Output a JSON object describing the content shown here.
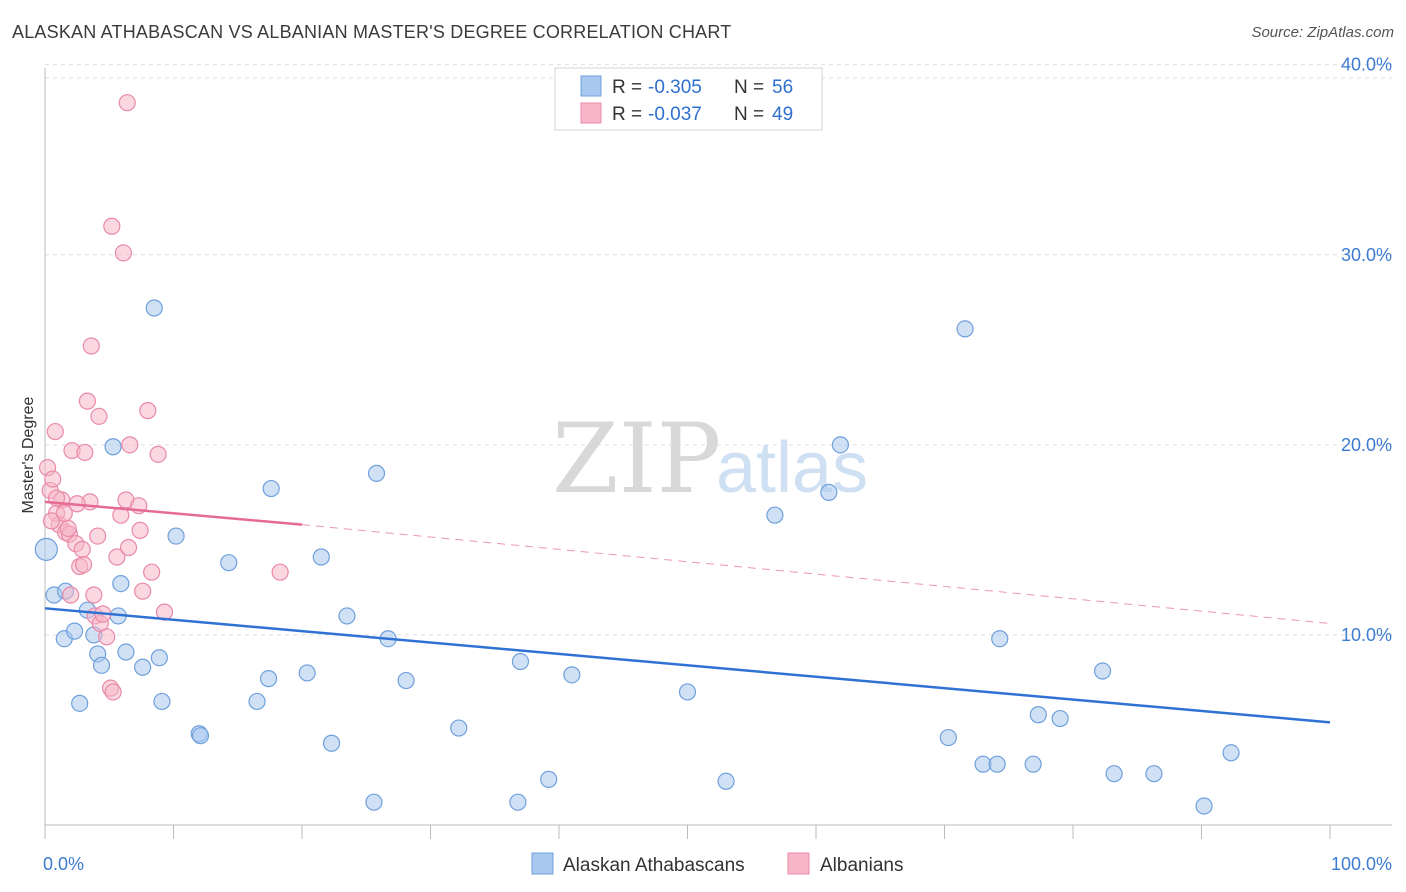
{
  "header": {
    "title": "ALASKAN ATHABASCAN VS ALBANIAN MASTER'S DEGREE CORRELATION CHART",
    "source": "Source: ZipAtlas.com"
  },
  "watermark": {
    "zip": "ZIP",
    "atlas": "atlas"
  },
  "legend": {
    "r_label": "R =",
    "n_label": "N =",
    "rows": [
      {
        "r": "-0.305",
        "n": "56",
        "color": "#a9c8ef"
      },
      {
        "r": "-0.037",
        "n": "49",
        "color": "#f6b6c8"
      }
    ]
  },
  "bottom_legend": [
    "Alaskan Athabascans",
    "Albanians"
  ],
  "chart_data": {
    "type": "scatter",
    "title": "ALASKAN ATHABASCAN VS ALBANIAN MASTER'S DEGREE CORRELATION CHART",
    "xlabel": "",
    "ylabel": "Master's Degree",
    "xlim": [
      0,
      100
    ],
    "ylim": [
      0,
      42
    ],
    "x_tick_labels": [
      "0.0%",
      "100.0%"
    ],
    "y_ticks": [
      10,
      20,
      30,
      40
    ],
    "y_tick_labels": [
      "10.0%",
      "20.0%",
      "30.0%",
      "40.0%"
    ],
    "grid": true,
    "series": [
      {
        "name": "Alaskan Athabascans",
        "color": "#a9c8ef",
        "stroke": "#6fa0dc",
        "line_color": "#2f72d4",
        "trend": {
          "x": [
            0,
            100
          ],
          "y": [
            11.4,
            5.4
          ]
        },
        "points": [
          [
            0.1,
            14.5
          ],
          [
            0.7,
            12.1
          ],
          [
            1.5,
            9.8
          ],
          [
            1.6,
            12.3
          ],
          [
            2.3,
            10.2
          ],
          [
            2.7,
            6.4
          ],
          [
            3.3,
            11.3
          ],
          [
            3.8,
            10.0
          ],
          [
            4.1,
            9.0
          ],
          [
            4.4,
            8.4
          ],
          [
            5.3,
            19.9
          ],
          [
            5.7,
            11.0
          ],
          [
            5.9,
            12.7
          ],
          [
            6.3,
            9.1
          ],
          [
            7.6,
            8.3
          ],
          [
            8.5,
            27.2
          ],
          [
            8.9,
            8.8
          ],
          [
            9.1,
            6.5
          ],
          [
            10.2,
            15.2
          ],
          [
            12.0,
            4.8
          ],
          [
            12.1,
            4.7
          ],
          [
            14.3,
            13.8
          ],
          [
            16.5,
            6.5
          ],
          [
            17.4,
            7.7
          ],
          [
            17.6,
            17.7
          ],
          [
            20.4,
            8.0
          ],
          [
            21.5,
            14.1
          ],
          [
            22.3,
            4.3
          ],
          [
            23.5,
            11.0
          ],
          [
            25.6,
            1.2
          ],
          [
            25.8,
            18.5
          ],
          [
            26.7,
            9.8
          ],
          [
            28.1,
            7.6
          ],
          [
            32.2,
            5.1
          ],
          [
            36.8,
            1.2
          ],
          [
            37.0,
            8.6
          ],
          [
            39.2,
            2.4
          ],
          [
            41.0,
            7.9
          ],
          [
            50.0,
            7.0
          ],
          [
            53.0,
            2.3
          ],
          [
            56.8,
            16.3
          ],
          [
            61.0,
            17.5
          ],
          [
            61.9,
            20.0
          ],
          [
            70.3,
            4.6
          ],
          [
            71.6,
            26.1
          ],
          [
            73.0,
            3.2
          ],
          [
            74.1,
            3.2
          ],
          [
            74.3,
            9.8
          ],
          [
            76.9,
            3.2
          ],
          [
            77.3,
            5.8
          ],
          [
            79.0,
            5.6
          ],
          [
            82.3,
            8.1
          ],
          [
            83.2,
            2.7
          ],
          [
            86.3,
            2.7
          ],
          [
            90.2,
            1.0
          ],
          [
            92.3,
            3.8
          ]
        ]
      },
      {
        "name": "Albanians",
        "color": "#f6b6c8",
        "stroke": "#e98aa8",
        "line_color": "#e56a95",
        "trend": {
          "x": [
            0,
            20
          ],
          "y": [
            17.0,
            15.8
          ]
        },
        "trend_dashed": {
          "x": [
            20,
            100
          ],
          "y": [
            15.8,
            10.6
          ]
        },
        "points": [
          [
            0.2,
            18.8
          ],
          [
            0.4,
            17.6
          ],
          [
            0.6,
            18.2
          ],
          [
            0.8,
            20.7
          ],
          [
            0.9,
            16.4
          ],
          [
            1.1,
            15.8
          ],
          [
            1.3,
            17.1
          ],
          [
            1.5,
            16.4
          ],
          [
            1.6,
            15.4
          ],
          [
            1.9,
            15.3
          ],
          [
            2.0,
            12.1
          ],
          [
            2.1,
            19.7
          ],
          [
            2.4,
            14.8
          ],
          [
            2.7,
            13.6
          ],
          [
            2.9,
            14.5
          ],
          [
            3.0,
            13.7
          ],
          [
            3.1,
            19.6
          ],
          [
            3.3,
            22.3
          ],
          [
            3.5,
            17.0
          ],
          [
            3.6,
            25.2
          ],
          [
            3.8,
            12.1
          ],
          [
            3.9,
            11.0
          ],
          [
            4.1,
            15.2
          ],
          [
            4.2,
            21.5
          ],
          [
            4.3,
            10.6
          ],
          [
            4.5,
            11.1
          ],
          [
            4.8,
            9.9
          ],
          [
            5.1,
            7.2
          ],
          [
            5.2,
            31.5
          ],
          [
            5.3,
            7.0
          ],
          [
            5.6,
            14.1
          ],
          [
            5.9,
            16.3
          ],
          [
            6.1,
            30.1
          ],
          [
            6.3,
            17.1
          ],
          [
            6.5,
            14.6
          ],
          [
            6.6,
            20.0
          ],
          [
            6.4,
            38.0
          ],
          [
            7.3,
            16.8
          ],
          [
            7.4,
            15.5
          ],
          [
            7.6,
            12.3
          ],
          [
            8.3,
            13.3
          ],
          [
            8.0,
            21.8
          ],
          [
            8.8,
            19.5
          ],
          [
            9.3,
            11.2
          ],
          [
            18.3,
            13.3
          ],
          [
            0.9,
            17.2
          ],
          [
            1.8,
            15.6
          ],
          [
            2.5,
            16.9
          ],
          [
            0.5,
            16.0
          ]
        ]
      }
    ]
  }
}
